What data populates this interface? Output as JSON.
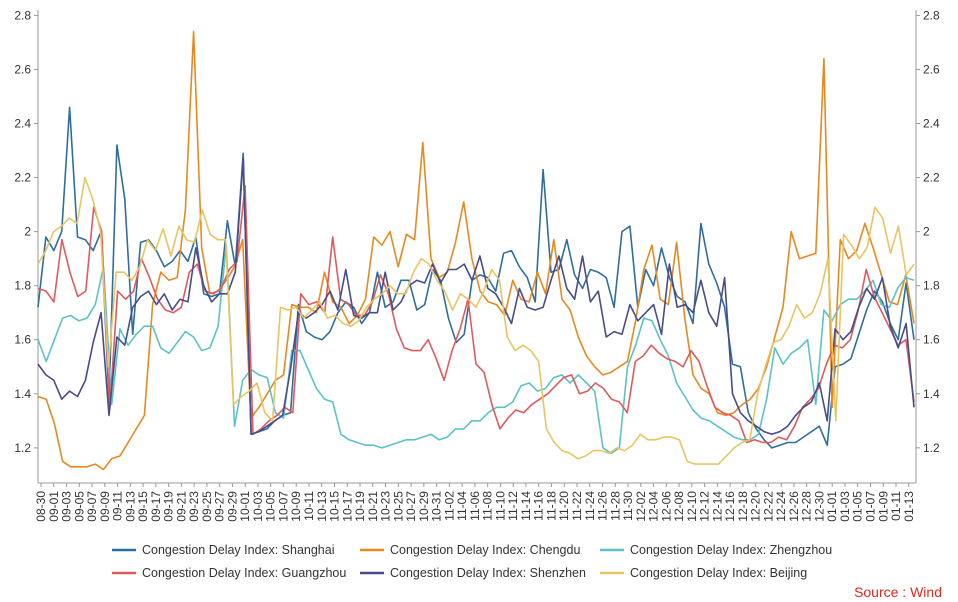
{
  "chart_data": {
    "type": "line",
    "title": "",
    "xlabel": "",
    "ylabel": "",
    "ylim": [
      1.07,
      2.82
    ],
    "yticks": [
      "1.2",
      "1.4",
      "1.6",
      "1.8",
      "2",
      "2.2",
      "2.4",
      "2.6",
      "2.8"
    ],
    "ytick_values": [
      1.2,
      1.4,
      1.6,
      1.8,
      2.0,
      2.2,
      2.4,
      2.6,
      2.8
    ],
    "right_axis": true,
    "grid": false,
    "legend_position": "bottom",
    "x_tick_labels": [
      "08-30",
      "09-01",
      "09-03",
      "09-05",
      "09-07",
      "09-09",
      "09-11",
      "09-13",
      "09-15",
      "09-17",
      "09-19",
      "09-21",
      "09-23",
      "09-25",
      "09-27",
      "09-29",
      "10-01",
      "10-03",
      "10-05",
      "10-07",
      "10-09",
      "10-11",
      "10-13",
      "10-15",
      "10-17",
      "10-19",
      "10-21",
      "10-23",
      "10-25",
      "10-27",
      "10-29",
      "10-31",
      "11-02",
      "11-04",
      "11-06",
      "11-08",
      "11-10",
      "11-12",
      "11-14",
      "11-16",
      "11-18",
      "11-20",
      "11-22",
      "11-24",
      "11-26",
      "11-28",
      "11-30",
      "12-02",
      "12-04",
      "12-06",
      "12-08",
      "12-10",
      "12-12",
      "12-14",
      "12-16",
      "12-18",
      "12-20",
      "12-22",
      "12-24",
      "12-26",
      "12-28",
      "12-30",
      "01-01",
      "01-03",
      "01-05",
      "01-07",
      "01-09",
      "01-11",
      "01-13"
    ],
    "series": [
      {
        "name": "Congestion Delay Index: Shanghai",
        "color": "#2e6e9e",
        "values": [
          1.72,
          1.98,
          1.93,
          2.0,
          2.46,
          1.98,
          1.97,
          1.93,
          2.0,
          1.38,
          2.32,
          2.12,
          1.62,
          1.96,
          1.97,
          1.93,
          1.87,
          1.89,
          1.93,
          1.89,
          1.98,
          1.77,
          1.76,
          1.77,
          2.04,
          1.87,
          2.29,
          1.25,
          1.26,
          1.27,
          1.3,
          1.32,
          1.33,
          1.73,
          1.63,
          1.61,
          1.6,
          1.63,
          1.7,
          1.74,
          1.72,
          1.66,
          1.7,
          1.85,
          1.72,
          1.74,
          1.82,
          1.82,
          1.71,
          1.73,
          1.86,
          1.82,
          1.68,
          1.59,
          1.62,
          1.82,
          1.84,
          1.83,
          1.78,
          1.92,
          1.93,
          1.87,
          1.83,
          1.74,
          2.23,
          1.85,
          1.86,
          1.97,
          1.84,
          1.79,
          1.86,
          1.85,
          1.83,
          1.72,
          2.0,
          2.02,
          1.72,
          1.86,
          1.8,
          1.94,
          1.83,
          1.76,
          1.74,
          1.66,
          2.03,
          1.88,
          1.81,
          1.72,
          1.51,
          1.5,
          1.33,
          1.27,
          1.23,
          1.2,
          1.21,
          1.22,
          1.22,
          1.24,
          1.26,
          1.28,
          1.21,
          1.5,
          1.51,
          1.53,
          1.62,
          1.71,
          1.78,
          1.74,
          1.66,
          1.6,
          1.81,
          1.6
        ]
      },
      {
        "name": "Congestion Delay Index: Chengdu",
        "color": "#e8891f",
        "values": [
          1.39,
          1.38,
          1.29,
          1.15,
          1.13,
          1.13,
          1.13,
          1.14,
          1.12,
          1.16,
          1.17,
          1.22,
          1.27,
          1.32,
          1.73,
          1.85,
          1.82,
          1.83,
          2.08,
          2.74,
          1.94,
          1.77,
          1.78,
          1.82,
          1.87,
          1.97,
          1.31,
          1.35,
          1.4,
          1.45,
          1.47,
          1.73,
          1.72,
          1.72,
          1.7,
          1.85,
          1.74,
          1.72,
          1.66,
          1.69,
          1.75,
          1.98,
          1.95,
          2.0,
          1.87,
          1.99,
          1.97,
          2.33,
          1.9,
          1.83,
          1.85,
          1.96,
          2.11,
          1.9,
          1.78,
          1.74,
          1.73,
          1.69,
          1.82,
          1.75,
          1.74,
          1.85,
          1.77,
          1.97,
          1.75,
          1.71,
          1.61,
          1.54,
          1.5,
          1.47,
          1.48,
          1.5,
          1.52,
          1.67,
          1.86,
          1.95,
          1.75,
          1.73,
          1.96,
          1.68,
          1.47,
          1.42,
          1.4,
          1.33,
          1.32,
          1.33,
          1.36,
          1.38,
          1.42,
          1.5,
          1.61,
          1.72,
          2.0,
          1.9,
          1.91,
          1.92,
          2.64,
          1.35,
          1.97,
          1.9,
          1.93,
          2.03,
          1.94,
          1.84,
          1.74,
          1.73,
          1.84,
          1.66
        ]
      },
      {
        "name": "Congestion Delay Index: Zhengzhou",
        "color": "#5cc2c8",
        "values": [
          1.6,
          1.52,
          1.6,
          1.68,
          1.69,
          1.67,
          1.68,
          1.73,
          1.87,
          1.36,
          1.64,
          1.58,
          1.62,
          1.65,
          1.65,
          1.57,
          1.55,
          1.59,
          1.63,
          1.61,
          1.56,
          1.57,
          1.65,
          1.95,
          1.28,
          1.45,
          1.49,
          1.47,
          1.46,
          1.33,
          1.31,
          1.56,
          1.56,
          1.49,
          1.42,
          1.38,
          1.37,
          1.25,
          1.23,
          1.22,
          1.21,
          1.21,
          1.2,
          1.21,
          1.22,
          1.23,
          1.23,
          1.24,
          1.25,
          1.23,
          1.24,
          1.27,
          1.27,
          1.3,
          1.3,
          1.33,
          1.35,
          1.35,
          1.37,
          1.43,
          1.44,
          1.41,
          1.42,
          1.46,
          1.47,
          1.44,
          1.47,
          1.44,
          1.41,
          1.2,
          1.18,
          1.2,
          1.5,
          1.58,
          1.68,
          1.67,
          1.6,
          1.54,
          1.44,
          1.39,
          1.34,
          1.31,
          1.3,
          1.28,
          1.26,
          1.24,
          1.23,
          1.23,
          1.25,
          1.38,
          1.57,
          1.51,
          1.55,
          1.57,
          1.6,
          1.36,
          1.71,
          1.67,
          1.73,
          1.75,
          1.75,
          1.78,
          1.82,
          1.73,
          1.72,
          1.79,
          1.83,
          1.82
        ]
      },
      {
        "name": "Congestion Delay Index: Guangzhou",
        "color": "#df5a5c",
        "values": [
          1.79,
          1.78,
          1.74,
          1.97,
          1.85,
          1.76,
          1.78,
          2.09,
          2.0,
          1.34,
          1.78,
          1.75,
          1.78,
          1.9,
          1.83,
          1.75,
          1.71,
          1.7,
          1.72,
          1.85,
          1.88,
          1.78,
          1.77,
          1.79,
          1.86,
          1.89,
          2.17,
          1.25,
          1.27,
          1.3,
          1.32,
          1.35,
          1.33,
          1.77,
          1.73,
          1.74,
          1.7,
          1.98,
          1.75,
          1.73,
          1.69,
          1.69,
          1.74,
          1.84,
          1.77,
          1.64,
          1.57,
          1.56,
          1.56,
          1.6,
          1.53,
          1.45,
          1.56,
          1.64,
          1.75,
          1.51,
          1.48,
          1.36,
          1.27,
          1.31,
          1.34,
          1.33,
          1.36,
          1.38,
          1.4,
          1.43,
          1.46,
          1.47,
          1.4,
          1.41,
          1.44,
          1.42,
          1.38,
          1.37,
          1.33,
          1.52,
          1.54,
          1.58,
          1.55,
          1.53,
          1.52,
          1.5,
          1.56,
          1.52,
          1.43,
          1.35,
          1.33,
          1.32,
          1.3,
          1.22,
          1.23,
          1.22,
          1.22,
          1.24,
          1.23,
          1.28,
          1.35,
          1.38,
          1.42,
          1.51,
          1.58,
          1.57,
          1.6,
          1.71,
          1.86,
          1.76,
          1.7,
          1.64,
          1.58,
          1.6,
          1.37
        ]
      },
      {
        "name": "Congestion Delay Index: Shenzhen",
        "color": "#474c8a",
        "values": [
          1.51,
          1.47,
          1.45,
          1.38,
          1.41,
          1.39,
          1.45,
          1.59,
          1.7,
          1.32,
          1.61,
          1.58,
          1.72,
          1.76,
          1.78,
          1.73,
          1.77,
          1.71,
          1.75,
          1.74,
          1.94,
          1.8,
          1.74,
          1.77,
          1.77,
          1.85,
          2.27,
          1.25,
          1.26,
          1.28,
          1.3,
          1.32,
          1.49,
          1.7,
          1.68,
          1.7,
          1.73,
          1.78,
          1.71,
          1.86,
          1.69,
          1.68,
          1.7,
          1.7,
          1.85,
          1.71,
          1.74,
          1.8,
          1.82,
          1.81,
          1.88,
          1.81,
          1.86,
          1.86,
          1.88,
          1.82,
          1.91,
          1.79,
          1.77,
          1.72,
          1.66,
          1.79,
          1.72,
          1.71,
          1.72,
          1.82,
          1.91,
          1.79,
          1.75,
          1.91,
          1.74,
          1.78,
          1.61,
          1.63,
          1.62,
          1.73,
          1.67,
          1.7,
          1.73,
          1.62,
          1.88,
          1.72,
          1.73,
          1.7,
          1.82,
          1.7,
          1.65,
          1.83,
          1.4,
          1.33,
          1.3,
          1.28,
          1.26,
          1.25,
          1.26,
          1.28,
          1.32,
          1.35,
          1.37,
          1.44,
          1.3,
          1.64,
          1.6,
          1.63,
          1.72,
          1.79,
          1.75,
          1.83,
          1.65,
          1.57,
          1.66,
          1.35
        ]
      },
      {
        "name": "Congestion Delay Index: Beijing",
        "color": "#e9c462",
        "values": [
          1.88,
          1.93,
          2.0,
          2.02,
          2.05,
          2.03,
          2.2,
          2.12,
          2.0,
          1.5,
          1.85,
          1.85,
          1.82,
          1.87,
          1.97,
          1.93,
          2.01,
          1.91,
          2.02,
          1.97,
          1.96,
          2.08,
          1.99,
          1.97,
          1.97,
          1.36,
          1.39,
          1.41,
          1.44,
          1.33,
          1.3,
          1.72,
          1.71,
          1.72,
          1.68,
          1.71,
          1.74,
          1.68,
          1.69,
          1.66,
          1.65,
          1.67,
          1.72,
          1.75,
          1.77,
          1.8,
          1.77,
          1.77,
          1.85,
          1.9,
          1.88,
          1.82,
          1.78,
          1.71,
          1.77,
          1.75,
          1.72,
          1.78,
          1.86,
          1.82,
          1.61,
          1.56,
          1.58,
          1.56,
          1.52,
          1.27,
          1.22,
          1.19,
          1.18,
          1.16,
          1.17,
          1.19,
          1.19,
          1.18,
          1.2,
          1.19,
          1.21,
          1.25,
          1.23,
          1.23,
          1.24,
          1.24,
          1.23,
          1.15,
          1.14,
          1.14,
          1.14,
          1.14,
          1.17,
          1.2,
          1.22,
          1.23,
          1.4,
          1.5,
          1.59,
          1.6,
          1.65,
          1.73,
          1.68,
          1.7,
          1.77,
          1.9,
          1.3,
          1.99,
          1.95,
          1.9,
          1.94,
          2.09,
          2.05,
          1.92,
          2.02,
          1.84,
          1.88
        ]
      }
    ],
    "source_label": "Source : Wind",
    "source_color": "#e0281b"
  }
}
